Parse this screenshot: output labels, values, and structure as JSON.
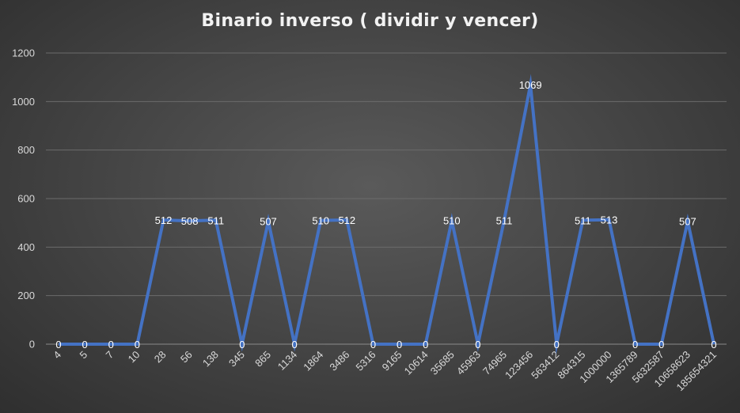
{
  "chart_data": {
    "type": "line",
    "title": "Binario inverso ( dividir y vencer)",
    "xlabel": "",
    "ylabel": "",
    "ylim": [
      0,
      1200
    ],
    "yticks": [
      0,
      200,
      400,
      600,
      800,
      1000,
      1200
    ],
    "grid": true,
    "legend": "none",
    "categories": [
      "4",
      "5",
      "7",
      "10",
      "28",
      "56",
      "138",
      "345",
      "865",
      "1134",
      "1864",
      "3486",
      "5316",
      "9165",
      "10614",
      "35685",
      "45963",
      "74965",
      "123456",
      "563412",
      "864315",
      "1000000",
      "1365789",
      "5632587",
      "10658623",
      "185654321"
    ],
    "series": [
      {
        "color": "#4472C4",
        "values": [
          0,
          0,
          0,
          0,
          512,
          508,
          511,
          0,
          507,
          0,
          510,
          512,
          0,
          0,
          0,
          510,
          0,
          511,
          1069,
          0,
          511,
          513,
          0,
          0,
          507,
          0
        ]
      }
    ]
  }
}
